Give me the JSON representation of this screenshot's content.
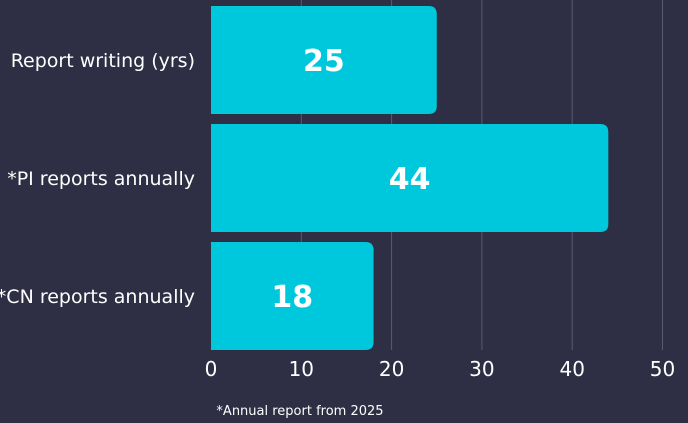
{
  "chart_data": {
    "type": "bar",
    "orientation": "horizontal",
    "categories": [
      "Report writing (yrs)",
      "*PI reports annually",
      "*CN reports annually"
    ],
    "values": [
      25,
      44,
      18
    ],
    "data_labels": [
      "25",
      "44",
      "18"
    ],
    "x_ticks": [
      "0",
      "10",
      "20",
      "30",
      "40",
      "50"
    ],
    "xlim": [
      0,
      50
    ],
    "grid": true,
    "legend": "none",
    "bar_color": "#00c8dc",
    "background_color": "#2e2e44",
    "gridline_color": "#5a5a72",
    "footnote": "*Annual report from 2025"
  }
}
